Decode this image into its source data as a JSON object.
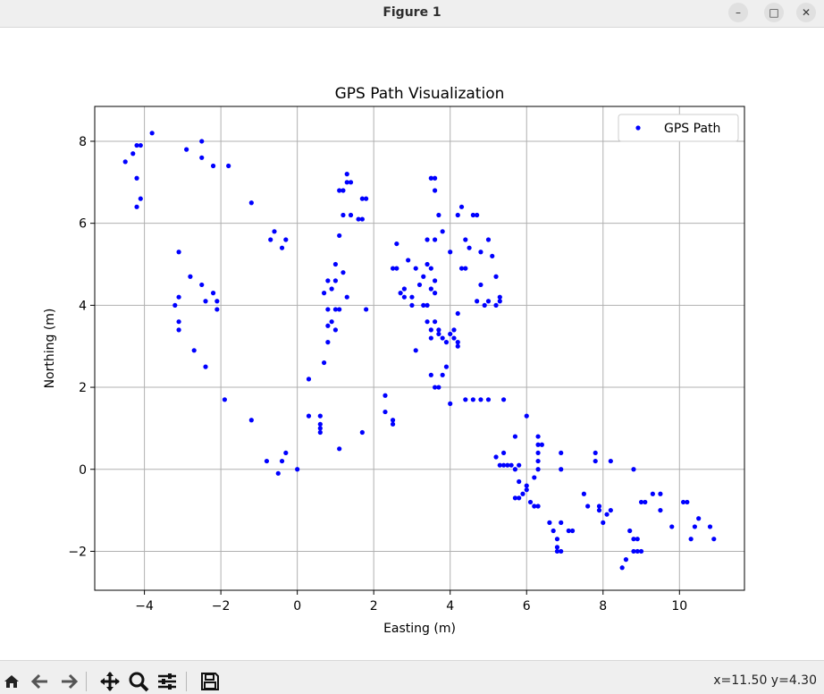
{
  "window": {
    "title": "Figure 1",
    "minimize_label": "–",
    "maximize_label": "□",
    "close_label": "✕"
  },
  "toolbar": {
    "icons": [
      "home-icon",
      "back-icon",
      "forward-icon",
      "pan-icon",
      "zoom-icon",
      "configure-subplots-icon",
      "save-icon"
    ],
    "coordinates": "x=11.50 y=4.30"
  },
  "colors": {
    "points": "#0000ff",
    "grid": "#b0b0b0",
    "axes": "#000000"
  },
  "chart_data": {
    "type": "scatter",
    "title": "GPS Path Visualization",
    "xlabel": "Easting (m)",
    "ylabel": "Northing (m)",
    "xlim": [
      -5.3,
      11.7
    ],
    "ylim": [
      -2.95,
      8.85
    ],
    "xticks": [
      -4,
      -2,
      0,
      2,
      4,
      6,
      8,
      10
    ],
    "xtick_labels": [
      "−4",
      "−2",
      "0",
      "2",
      "4",
      "6",
      "8",
      "10"
    ],
    "yticks": [
      -2,
      0,
      2,
      4,
      6,
      8
    ],
    "ytick_labels": [
      "−2",
      "0",
      "2",
      "4",
      "6",
      "8"
    ],
    "grid": true,
    "legend": {
      "position": "top-right",
      "entries": [
        "GPS Path"
      ]
    },
    "series": [
      {
        "name": "GPS Path",
        "marker": "dot",
        "points": [
          [
            -3.8,
            8.2
          ],
          [
            -4.2,
            7.9
          ],
          [
            -4.1,
            7.9
          ],
          [
            -4.3,
            7.7
          ],
          [
            -4.5,
            7.5
          ],
          [
            -4.2,
            7.1
          ],
          [
            -4.1,
            6.6
          ],
          [
            -4.2,
            6.4
          ],
          [
            -2.5,
            8.0
          ],
          [
            -2.9,
            7.8
          ],
          [
            -2.5,
            7.6
          ],
          [
            -2.2,
            7.4
          ],
          [
            -1.8,
            7.4
          ],
          [
            -1.2,
            6.5
          ],
          [
            -0.6,
            5.8
          ],
          [
            -0.7,
            5.6
          ],
          [
            -0.3,
            5.6
          ],
          [
            -0.4,
            5.4
          ],
          [
            -3.1,
            5.3
          ],
          [
            -2.8,
            4.7
          ],
          [
            -2.5,
            4.5
          ],
          [
            -2.2,
            4.3
          ],
          [
            -2.1,
            4.1
          ],
          [
            -2.4,
            4.1
          ],
          [
            -3.1,
            4.2
          ],
          [
            -3.2,
            4.0
          ],
          [
            -2.1,
            3.9
          ],
          [
            -3.1,
            3.6
          ],
          [
            -3.1,
            3.4
          ],
          [
            -2.7,
            2.9
          ],
          [
            -2.4,
            2.5
          ],
          [
            -1.9,
            1.7
          ],
          [
            -1.2,
            1.2
          ],
          [
            -0.8,
            0.2
          ],
          [
            -0.5,
            -0.1
          ],
          [
            -0.4,
            0.2
          ],
          [
            -0.3,
            0.4
          ],
          [
            0.0,
            0.0
          ],
          [
            0.3,
            1.3
          ],
          [
            0.6,
            1.3
          ],
          [
            0.6,
            1.1
          ],
          [
            0.6,
            1.0
          ],
          [
            0.6,
            0.9
          ],
          [
            1.1,
            0.5
          ],
          [
            1.7,
            0.9
          ],
          [
            0.3,
            2.2
          ],
          [
            0.7,
            2.6
          ],
          [
            0.8,
            3.1
          ],
          [
            0.8,
            3.5
          ],
          [
            0.9,
            3.6
          ],
          [
            1.0,
            3.4
          ],
          [
            0.8,
            3.9
          ],
          [
            1.0,
            3.9
          ],
          [
            1.1,
            3.9
          ],
          [
            0.7,
            4.3
          ],
          [
            0.9,
            4.4
          ],
          [
            1.0,
            4.6
          ],
          [
            0.8,
            4.6
          ],
          [
            1.0,
            5.0
          ],
          [
            1.2,
            4.8
          ],
          [
            1.3,
            4.2
          ],
          [
            1.8,
            3.9
          ],
          [
            1.1,
            5.7
          ],
          [
            1.2,
            6.2
          ],
          [
            1.4,
            6.2
          ],
          [
            1.1,
            6.8
          ],
          [
            1.2,
            6.8
          ],
          [
            1.3,
            7.0
          ],
          [
            1.4,
            7.0
          ],
          [
            1.3,
            7.2
          ],
          [
            1.6,
            6.1
          ],
          [
            1.7,
            6.1
          ],
          [
            1.7,
            6.6
          ],
          [
            1.8,
            6.6
          ],
          [
            2.3,
            1.8
          ],
          [
            2.3,
            1.4
          ],
          [
            2.5,
            1.2
          ],
          [
            2.5,
            1.1
          ],
          [
            2.5,
            4.9
          ],
          [
            2.6,
            4.9
          ],
          [
            2.6,
            5.5
          ],
          [
            2.7,
            4.3
          ],
          [
            2.8,
            4.4
          ],
          [
            2.8,
            4.2
          ],
          [
            2.9,
            5.1
          ],
          [
            3.0,
            4.2
          ],
          [
            3.0,
            4.0
          ],
          [
            3.1,
            4.9
          ],
          [
            3.2,
            4.5
          ],
          [
            3.3,
            4.0
          ],
          [
            3.3,
            4.7
          ],
          [
            3.4,
            5.0
          ],
          [
            3.4,
            4.0
          ],
          [
            3.5,
            4.9
          ],
          [
            3.5,
            4.4
          ],
          [
            3.6,
            4.3
          ],
          [
            3.6,
            4.6
          ],
          [
            3.4,
            5.6
          ],
          [
            3.6,
            5.6
          ],
          [
            3.1,
            2.9
          ],
          [
            3.4,
            3.6
          ],
          [
            3.5,
            3.4
          ],
          [
            3.5,
            3.2
          ],
          [
            3.6,
            3.6
          ],
          [
            3.7,
            3.4
          ],
          [
            3.7,
            3.3
          ],
          [
            3.8,
            3.2
          ],
          [
            3.5,
            2.3
          ],
          [
            3.6,
            2.0
          ],
          [
            3.7,
            2.0
          ],
          [
            3.8,
            2.3
          ],
          [
            3.9,
            2.5
          ],
          [
            3.9,
            3.1
          ],
          [
            4.0,
            3.3
          ],
          [
            4.1,
            3.2
          ],
          [
            4.2,
            3.1
          ],
          [
            4.2,
            3.0
          ],
          [
            4.1,
            3.4
          ],
          [
            4.2,
            3.8
          ],
          [
            4.0,
            1.6
          ],
          [
            3.6,
            7.1
          ],
          [
            3.5,
            7.1
          ],
          [
            3.6,
            6.8
          ],
          [
            3.7,
            6.2
          ],
          [
            3.8,
            5.8
          ],
          [
            4.0,
            5.3
          ],
          [
            4.2,
            6.2
          ],
          [
            4.3,
            6.4
          ],
          [
            4.3,
            4.9
          ],
          [
            4.4,
            4.9
          ],
          [
            4.4,
            5.6
          ],
          [
            4.5,
            5.4
          ],
          [
            4.6,
            6.2
          ],
          [
            4.7,
            6.2
          ],
          [
            4.7,
            4.1
          ],
          [
            4.8,
            4.5
          ],
          [
            4.8,
            5.3
          ],
          [
            4.9,
            4.0
          ],
          [
            5.0,
            5.6
          ],
          [
            5.0,
            4.1
          ],
          [
            5.1,
            5.2
          ],
          [
            5.2,
            4.0
          ],
          [
            5.2,
            4.7
          ],
          [
            5.3,
            4.1
          ],
          [
            5.3,
            4.2
          ],
          [
            4.4,
            1.7
          ],
          [
            4.6,
            1.7
          ],
          [
            4.8,
            1.7
          ],
          [
            5.0,
            1.7
          ],
          [
            5.4,
            1.7
          ],
          [
            5.2,
            0.3
          ],
          [
            5.3,
            0.1
          ],
          [
            5.4,
            0.4
          ],
          [
            5.4,
            0.1
          ],
          [
            5.5,
            0.1
          ],
          [
            5.6,
            0.1
          ],
          [
            5.7,
            0.0
          ],
          [
            5.7,
            0.8
          ],
          [
            5.8,
            0.1
          ],
          [
            5.7,
            -0.7
          ],
          [
            5.8,
            -0.3
          ],
          [
            5.8,
            -0.7
          ],
          [
            5.9,
            -0.6
          ],
          [
            6.0,
            -0.4
          ],
          [
            6.0,
            -0.5
          ],
          [
            6.0,
            1.3
          ],
          [
            6.1,
            -0.8
          ],
          [
            6.2,
            -0.9
          ],
          [
            6.2,
            -0.2
          ],
          [
            6.3,
            0.0
          ],
          [
            6.3,
            0.2
          ],
          [
            6.3,
            0.4
          ],
          [
            6.3,
            0.6
          ],
          [
            6.3,
            0.8
          ],
          [
            6.4,
            0.6
          ],
          [
            6.3,
            -0.9
          ],
          [
            6.6,
            -1.3
          ],
          [
            6.7,
            -1.5
          ],
          [
            6.8,
            -1.7
          ],
          [
            6.8,
            -1.9
          ],
          [
            6.8,
            -2.0
          ],
          [
            6.9,
            -2.0
          ],
          [
            6.9,
            -1.3
          ],
          [
            6.9,
            0.0
          ],
          [
            6.9,
            0.4
          ],
          [
            7.1,
            -1.5
          ],
          [
            7.2,
            -1.5
          ],
          [
            7.5,
            -0.6
          ],
          [
            7.6,
            -0.9
          ],
          [
            7.8,
            0.4
          ],
          [
            7.8,
            0.2
          ],
          [
            7.9,
            -0.9
          ],
          [
            7.9,
            -1.0
          ],
          [
            8.0,
            -1.3
          ],
          [
            8.1,
            -1.1
          ],
          [
            8.2,
            0.2
          ],
          [
            8.2,
            -1.0
          ],
          [
            8.5,
            -2.4
          ],
          [
            8.6,
            -2.2
          ],
          [
            8.7,
            -1.5
          ],
          [
            8.8,
            -1.7
          ],
          [
            8.8,
            -2.0
          ],
          [
            8.9,
            -2.0
          ],
          [
            8.9,
            -1.7
          ],
          [
            9.0,
            -2.0
          ],
          [
            8.8,
            0.0
          ],
          [
            9.0,
            -0.8
          ],
          [
            9.1,
            -0.8
          ],
          [
            9.3,
            -0.6
          ],
          [
            9.5,
            -0.6
          ],
          [
            9.5,
            -1.0
          ],
          [
            9.8,
            -1.4
          ],
          [
            10.1,
            -0.8
          ],
          [
            10.2,
            -0.8
          ],
          [
            10.3,
            -1.7
          ],
          [
            10.4,
            -1.4
          ],
          [
            10.5,
            -1.2
          ],
          [
            10.8,
            -1.4
          ],
          [
            10.9,
            -1.7
          ]
        ]
      }
    ]
  }
}
